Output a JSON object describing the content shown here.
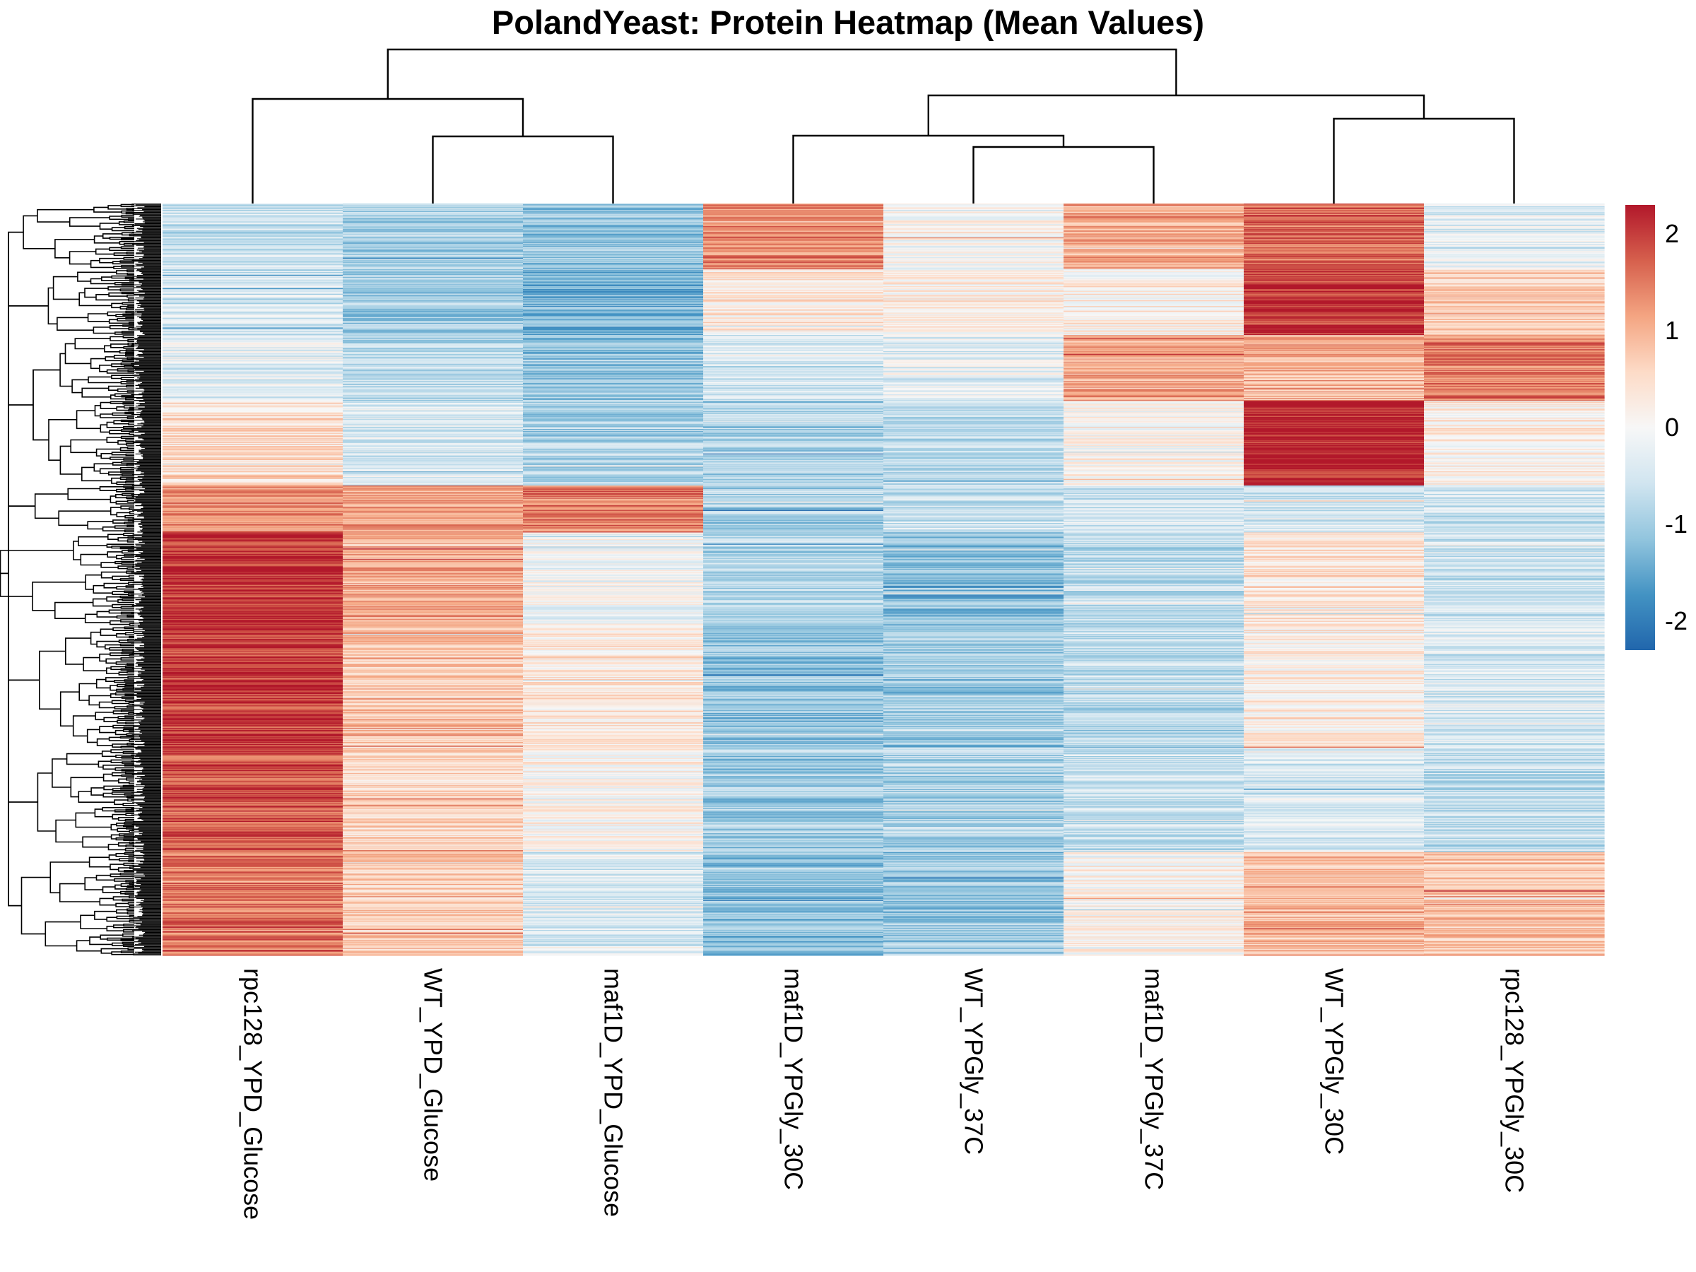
{
  "chart_data": {
    "type": "heatmap",
    "title": "PolandYeast: Protein Heatmap (Mean Values)",
    "columns": [
      "rpc128_YPD_Glucose",
      "WT_YPD_Glucose",
      "maf1D_YPD_Glucose",
      "maf1D_YPGly_30C",
      "WT_YPGly_37C",
      "maf1D_YPGly_37C",
      "WT_YPGly_30C",
      "rpc128_YPGly_30C"
    ],
    "row_cluster_means": [
      {
        "rows": 70,
        "values": [
          -0.6,
          -0.9,
          -1.1,
          1.4,
          0.0,
          1.1,
          1.6,
          -0.3
        ]
      },
      {
        "rows": 70,
        "values": [
          -0.5,
          -1.0,
          -1.3,
          0.3,
          0.2,
          0.2,
          2.1,
          0.7
        ]
      },
      {
        "rows": 70,
        "values": [
          -0.3,
          -0.8,
          -1.2,
          -0.5,
          -0.3,
          1.0,
          1.0,
          1.5
        ]
      },
      {
        "rows": 90,
        "values": [
          0.5,
          -0.4,
          -0.9,
          -0.9,
          -0.8,
          0.1,
          2.2,
          0.2
        ]
      },
      {
        "rows": 50,
        "values": [
          1.3,
          1.2,
          1.5,
          -0.9,
          -0.6,
          -0.5,
          -0.5,
          -0.6
        ]
      },
      {
        "rows": 100,
        "values": [
          2.1,
          1.1,
          -0.1,
          -0.8,
          -1.2,
          -0.7,
          0.4,
          -0.6
        ]
      },
      {
        "rows": 130,
        "values": [
          2.0,
          0.8,
          0.3,
          -1.1,
          -1.0,
          -0.7,
          0.2,
          -0.4
        ]
      },
      {
        "rows": 110,
        "values": [
          1.8,
          0.6,
          0.1,
          -1.0,
          -0.9,
          -0.6,
          -0.4,
          -0.7
        ]
      },
      {
        "rows": 110,
        "values": [
          1.6,
          0.7,
          -0.4,
          -1.2,
          -1.1,
          0.1,
          0.9,
          0.8
        ]
      }
    ],
    "color_scale": {
      "min": -2.3,
      "max": 2.3,
      "colors": [
        "#2166ac",
        "#4393c3",
        "#92c5de",
        "#d1e5f0",
        "#f7f7f7",
        "#fddbc7",
        "#f4a582",
        "#d6604d",
        "#b2182b"
      ],
      "ticks": [
        2,
        1,
        0,
        -1,
        -2
      ]
    },
    "tick_labels": [
      "2",
      "1",
      "0",
      "-1",
      "-2"
    ],
    "row_dendrogram": true,
    "column_dendrogram": true,
    "legend_position": "right"
  }
}
